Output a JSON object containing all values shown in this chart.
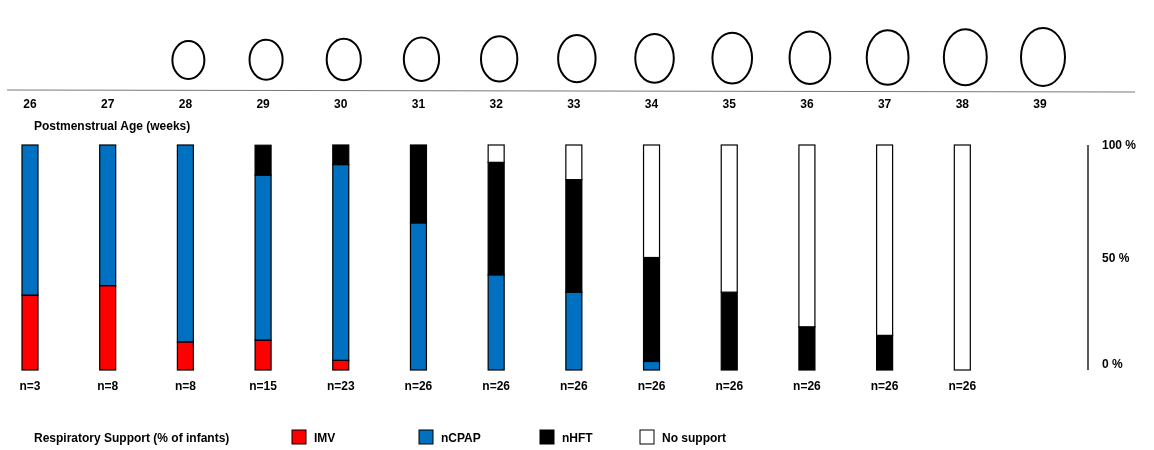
{
  "chart_data": {
    "type": "bar",
    "stacked": true,
    "xlabel": "Postmenstrual Age (weeks)",
    "legend_title": "Respiratory Support (% of infants)",
    "legend": "bottom",
    "categories": [
      "26",
      "27",
      "28",
      "29",
      "30",
      "31",
      "32",
      "33",
      "34",
      "35",
      "36",
      "37",
      "38",
      "39"
    ],
    "ylim": [
      0,
      100
    ],
    "yticks": [
      {
        "value": 0,
        "label": "0 %"
      },
      {
        "value": 50,
        "label": "50 %"
      },
      {
        "value": 100,
        "label": "100 %"
      }
    ],
    "series": [
      {
        "name": "IMV",
        "color": "#ff0000",
        "values": [
          33.3,
          37.5,
          12.5,
          13.3,
          4.3,
          0,
          0,
          0,
          0,
          0,
          0,
          0,
          0,
          null
        ]
      },
      {
        "name": "nCPAP",
        "color": "#0070c0",
        "values": [
          66.7,
          62.5,
          87.5,
          73.3,
          87,
          65.4,
          42.3,
          34.6,
          3.8,
          0,
          0,
          0,
          0,
          null
        ]
      },
      {
        "name": "nHFT",
        "color": "#000000",
        "values": [
          0,
          0,
          0,
          13.3,
          8.7,
          34.6,
          50,
          50,
          46.2,
          34.6,
          19.2,
          15.4,
          0,
          null
        ]
      },
      {
        "name": "No support",
        "color": "#ffffff",
        "values": [
          0,
          0,
          0,
          0,
          0,
          0,
          7.7,
          15.4,
          50,
          65.4,
          80.8,
          84.6,
          100,
          null
        ]
      }
    ],
    "annotations": [
      "n=3",
      "n=8",
      "n=8",
      "n=15",
      "n=23",
      "n=26",
      "n=26",
      "n=26",
      "n=26",
      "n=26",
      "n=26",
      "n=26",
      "n=26"
    ]
  }
}
